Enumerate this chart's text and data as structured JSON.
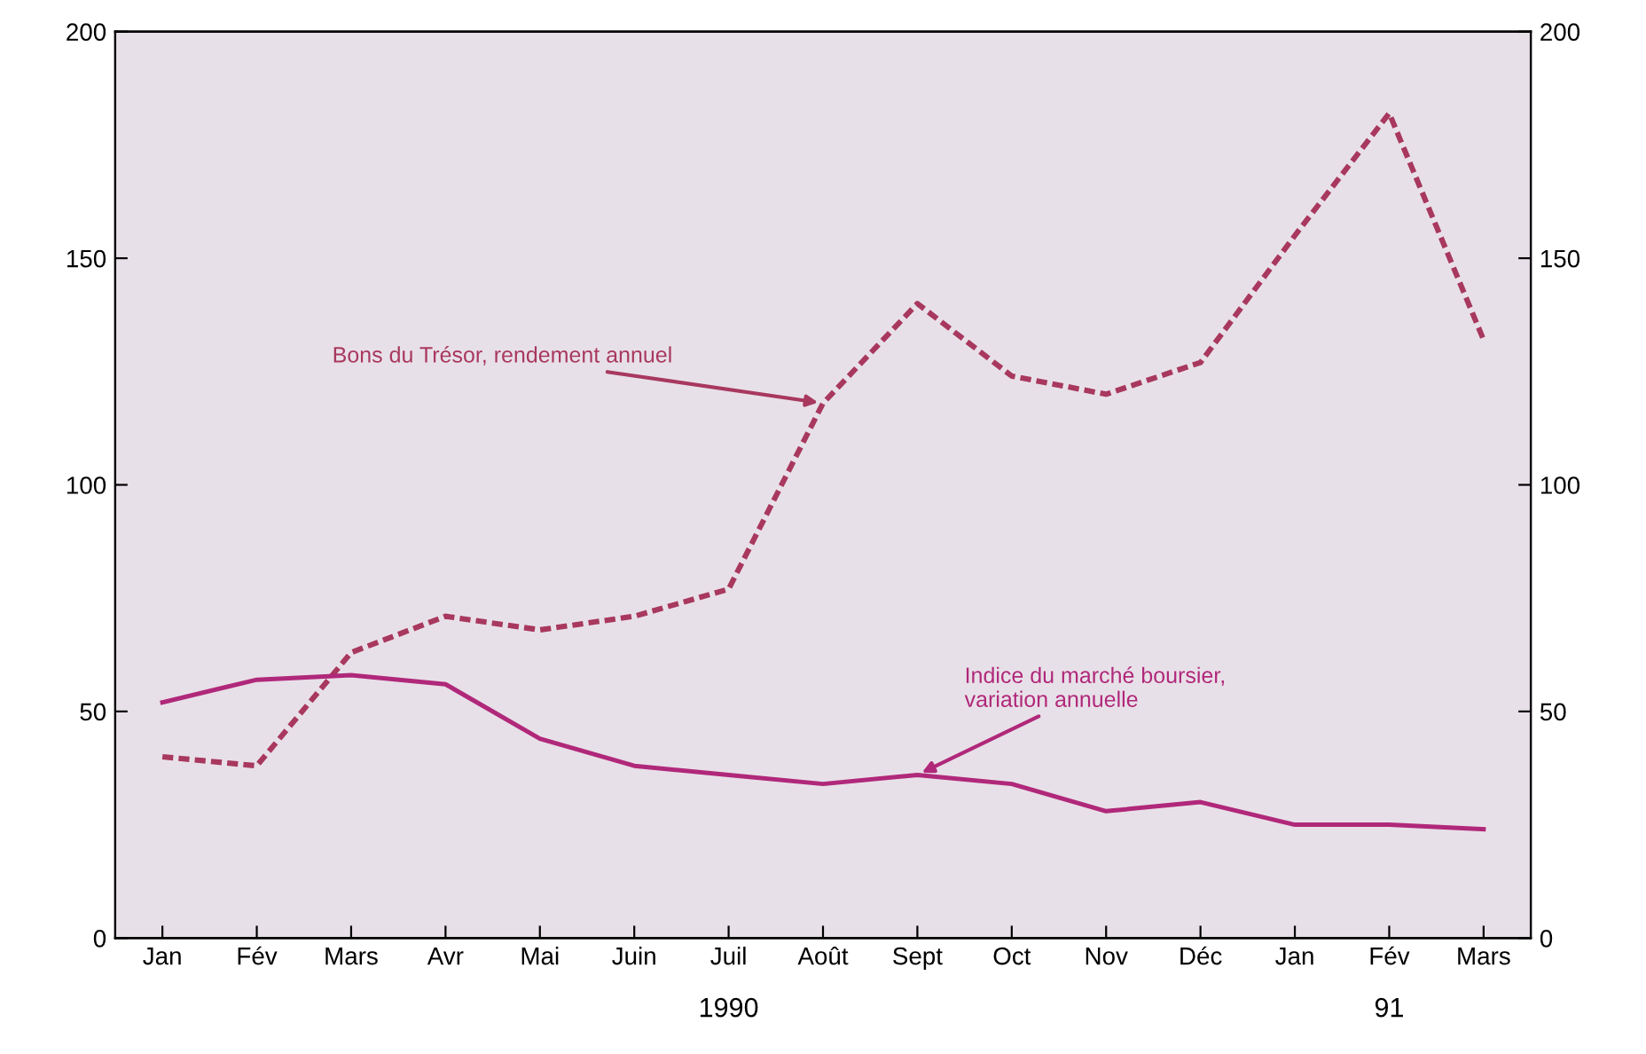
{
  "chart_data": {
    "type": "line",
    "categories": [
      "Jan",
      "Fév",
      "Mars",
      "Avr",
      "Mai",
      "Juin",
      "Juil",
      "Août",
      "Sept",
      "Oct",
      "Nov",
      "Déc",
      "Jan",
      "Fév",
      "Mars"
    ],
    "series": [
      {
        "name": "Bons du Trésor, rendement annuel",
        "color": "#a8385e",
        "line_style": "dashed",
        "values": [
          40,
          38,
          63,
          71,
          68,
          71,
          77,
          118,
          140,
          124,
          120,
          127,
          155,
          182,
          132
        ]
      },
      {
        "name": "Indice du marché boursier, variation annuelle",
        "color": "#b0287a",
        "line_style": "solid",
        "values": [
          52,
          57,
          58,
          56,
          44,
          38,
          36,
          34,
          36,
          34,
          28,
          30,
          25,
          25,
          24
        ]
      }
    ],
    "ylim": [
      0,
      200
    ],
    "yticks": [
      0,
      50,
      100,
      150,
      200
    ],
    "y2lim": [
      0,
      200
    ],
    "y2ticks": [
      0,
      50,
      100,
      150,
      200
    ],
    "annotations": [
      "1990",
      "91"
    ],
    "grid": false,
    "legend": false,
    "marker": "none"
  }
}
